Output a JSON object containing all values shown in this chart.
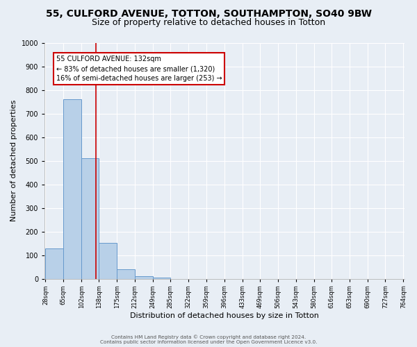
{
  "title": "55, CULFORD AVENUE, TOTTON, SOUTHAMPTON, SO40 9BW",
  "subtitle": "Size of property relative to detached houses in Totton",
  "bar_values": [
    128,
    760,
    510,
    152,
    40,
    10,
    5,
    0,
    0,
    0,
    0,
    0,
    0,
    0,
    0,
    0,
    0,
    0,
    0,
    0
  ],
  "bar_edges": [
    28,
    65,
    102,
    138,
    175,
    212,
    249,
    285,
    322,
    359,
    396,
    433,
    469,
    506,
    543,
    580,
    616,
    653,
    690,
    727,
    764
  ],
  "tick_labels": [
    "28sqm",
    "65sqm",
    "102sqm",
    "138sqm",
    "175sqm",
    "212sqm",
    "249sqm",
    "285sqm",
    "322sqm",
    "359sqm",
    "396sqm",
    "433sqm",
    "469sqm",
    "506sqm",
    "543sqm",
    "580sqm",
    "616sqm",
    "653sqm",
    "690sqm",
    "727sqm",
    "764sqm"
  ],
  "xlabel": "Distribution of detached houses by size in Totton",
  "ylabel": "Number of detached properties",
  "ylim": [
    0,
    1000
  ],
  "yticks": [
    0,
    100,
    200,
    300,
    400,
    500,
    600,
    700,
    800,
    900,
    1000
  ],
  "bar_color": "#b8d0e8",
  "bar_edge_color": "#6699cc",
  "vline_x": 132,
  "vline_color": "#cc0000",
  "annotation_line1": "55 CULFORD AVENUE: 132sqm",
  "annotation_line2": "← 83% of detached houses are smaller (1,320)",
  "annotation_line3": "16% of semi-detached houses are larger (253) →",
  "annotation_box_color": "#cc0000",
  "footer_line1": "Contains HM Land Registry data © Crown copyright and database right 2024.",
  "footer_line2": "Contains public sector information licensed under the Open Government Licence v3.0.",
  "background_color": "#e8eef5",
  "plot_background_color": "#e8eef5",
  "grid_color": "#ffffff",
  "title_fontsize": 10,
  "subtitle_fontsize": 9
}
